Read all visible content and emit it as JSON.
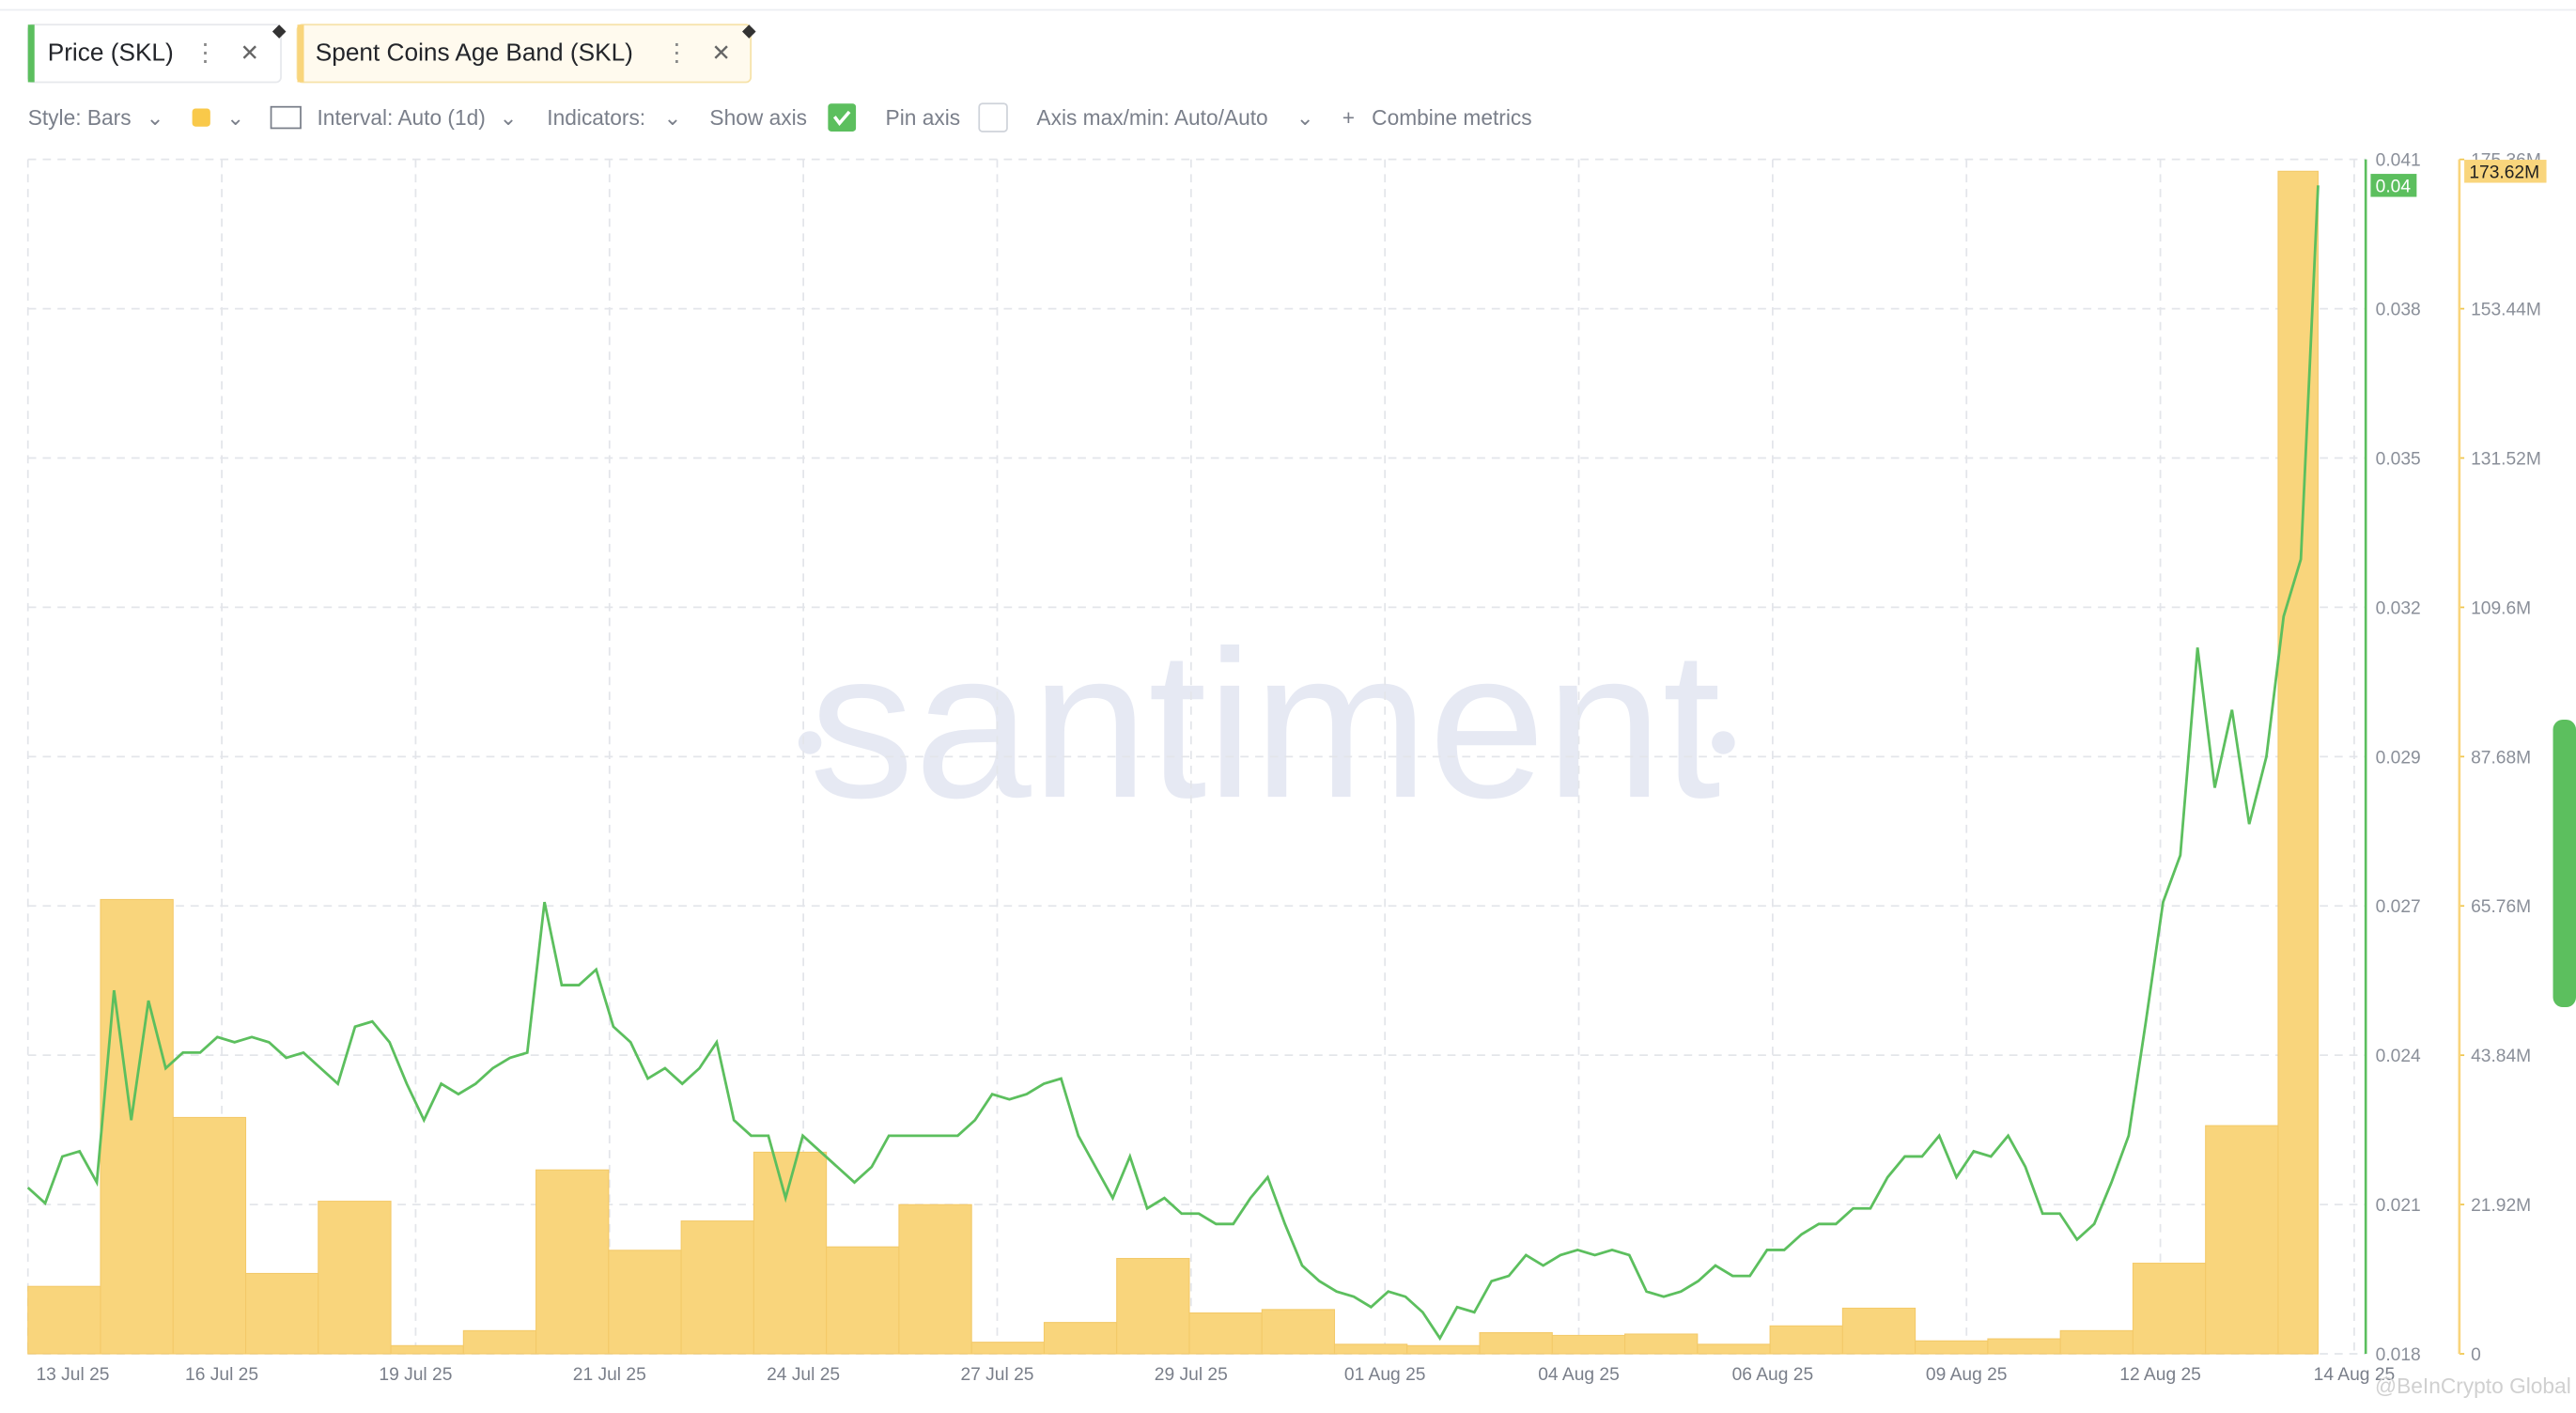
{
  "tabs": [
    "Price (SKL)",
    "Spent Coins Age Band (SKL)"
  ],
  "toolbar": [
    "Style: Bars",
    "Interval: Auto (1d)",
    "Indicators:",
    "Show axis",
    "Pin axis",
    "Axis max/min: Auto/Auto",
    "Combine metrics"
  ],
  "watermark": "santiment",
  "credit": "@BeInCrypto Global",
  "chart_data": {
    "type": "combo",
    "x_labels": [
      "13 Jul 25",
      "16 Jul 25",
      "19 Jul 25",
      "21 Jul 25",
      "24 Jul 25",
      "27 Jul 25",
      "29 Jul 25",
      "01 Aug 25",
      "04 Aug 25",
      "06 Aug 25",
      "09 Aug 25",
      "12 Aug 25",
      "14 Aug 25"
    ],
    "ylim": [
      0.018,
      0.041
    ],
    "yticks": [
      {
        "value": 0.018,
        "label": "0.018"
      },
      {
        "value": 0.020875,
        "label": "0.021"
      },
      {
        "value": 0.02375,
        "label": "0.024"
      },
      {
        "value": 0.026625,
        "label": "0.027"
      },
      {
        "value": 0.0295,
        "label": "0.029"
      },
      {
        "value": 0.032375,
        "label": "0.032"
      },
      {
        "value": 0.03525,
        "label": "0.035"
      },
      {
        "value": 0.038125,
        "label": "0.038"
      },
      {
        "value": 0.041,
        "label": "0.041"
      }
    ],
    "y2lim": [
      0,
      175360000
    ],
    "y2ticks": [
      0,
      {
        "value": 21920000,
        "label": "21.92M"
      },
      {
        "value": 43840000,
        "label": "43.84M"
      },
      {
        "value": 65760000,
        "label": "65.76M"
      },
      {
        "value": 87680000,
        "label": "87.68M"
      },
      {
        "value": 109600000,
        "label": "109.6M"
      },
      {
        "value": 131520000,
        "label": "131.52M"
      },
      {
        "value": 153440000,
        "label": "153.44M"
      },
      {
        "value": 175360000,
        "label": "175.36M"
      }
    ],
    "grid": true,
    "series": [
      {
        "name": "Spent Coins Age Band (SKL)",
        "type": "bar",
        "axis": "y2",
        "color": "#f9d57c",
        "values": [
          9900000,
          66700000,
          34700000,
          11800000,
          22400000,
          1200000,
          3400000,
          27000000,
          15200000,
          19500000,
          29600000,
          15700000,
          21900000,
          1700000,
          4600000,
          14000000,
          6000000,
          6500000,
          1400000,
          1200000,
          3100000,
          2700000,
          2900000,
          1400000,
          4100000,
          6700000,
          1900000,
          2200000,
          3400000,
          13300000,
          33500000,
          173620000
        ],
        "last_label": "173.62M"
      },
      {
        "name": "Price (SKL)",
        "type": "line",
        "axis": "y",
        "color": "#5cbf5e",
        "values": [
          0.0212,
          0.0209,
          0.0218,
          0.0219,
          0.0213,
          0.025,
          0.0225,
          0.0248,
          0.0235,
          0.0238,
          0.0238,
          0.0241,
          0.024,
          0.0241,
          0.024,
          0.0237,
          0.0238,
          0.0235,
          0.0232,
          0.0243,
          0.0244,
          0.024,
          0.0232,
          0.0225,
          0.0232,
          0.023,
          0.0232,
          0.0235,
          0.0237,
          0.0238,
          0.0267,
          0.0251,
          0.0251,
          0.0254,
          0.0243,
          0.024,
          0.0233,
          0.0235,
          0.0232,
          0.0235,
          0.024,
          0.0225,
          0.0222,
          0.0222,
          0.021,
          0.0222,
          0.0219,
          0.0216,
          0.0213,
          0.0216,
          0.0222,
          0.0222,
          0.0222,
          0.0222,
          0.0222,
          0.0225,
          0.023,
          0.0229,
          0.023,
          0.0232,
          0.0233,
          0.0222,
          0.0216,
          0.021,
          0.0218,
          0.0208,
          0.021,
          0.0207,
          0.0207,
          0.0205,
          0.0205,
          0.021,
          0.0214,
          0.0205,
          0.0197,
          0.0194,
          0.0192,
          0.0191,
          0.0189,
          0.0192,
          0.0191,
          0.0188,
          0.0183,
          0.0189,
          0.0188,
          0.0194,
          0.0195,
          0.0199,
          0.0197,
          0.0199,
          0.02,
          0.0199,
          0.02,
          0.0199,
          0.0192,
          0.0191,
          0.0192,
          0.0194,
          0.0197,
          0.0195,
          0.0195,
          0.02,
          0.02,
          0.0203,
          0.0205,
          0.0205,
          0.0208,
          0.0208,
          0.0214,
          0.0218,
          0.0218,
          0.0222,
          0.0214,
          0.0219,
          0.0218,
          0.0222,
          0.0216,
          0.0207,
          0.0207,
          0.0202,
          0.0205,
          0.0213,
          0.0222,
          0.0244,
          0.0267,
          0.0276,
          0.0316,
          0.0289,
          0.0304,
          0.0282,
          0.0295,
          0.0322,
          0.0333,
          0.0405
        ],
        "last_label": "0.04"
      }
    ]
  }
}
